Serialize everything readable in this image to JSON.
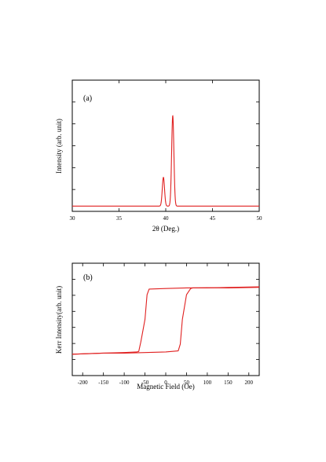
{
  "chart_data": [
    {
      "type": "line",
      "panel_label": "(a)",
      "xlabel": "2θ (Deg.)",
      "ylabel": "Intensity (arb. unit)",
      "xlim": [
        30,
        50
      ],
      "ylim": [
        0,
        1
      ],
      "x_ticks": [
        30,
        35,
        40,
        45,
        50
      ],
      "x_tick_labels": [
        "30",
        "35",
        "40",
        "45",
        "50"
      ],
      "y_tick_count": 5,
      "grid": false,
      "series": [
        {
          "color": "#e02020",
          "peaks": [
            {
              "center": 39.75,
              "height": 0.22,
              "width": 0.12
            },
            {
              "center": 40.75,
              "height": 0.69,
              "width": 0.12
            }
          ],
          "baseline": 0.04
        }
      ]
    },
    {
      "type": "line",
      "panel_label": "(b)",
      "xlabel": "Magnetic Field (Oe)",
      "ylabel": "Kerr Intensity(arb. unit)",
      "xlim": [
        -225,
        225
      ],
      "ylim": [
        0,
        1
      ],
      "x_ticks": [
        -200,
        -150,
        -100,
        -50,
        0,
        50,
        100,
        150,
        200
      ],
      "x_tick_labels": [
        "-200",
        "-150",
        "-100",
        "-50",
        "0",
        "50",
        "100",
        "150",
        "200"
      ],
      "y_tick_count": 6,
      "grid": false,
      "series": [
        {
          "color": "#e02020",
          "branch": "descending",
          "x": [
            225,
            150,
            100,
            50,
            0,
            -40,
            -45,
            -50,
            -60,
            -65,
            -70,
            -100,
            -150,
            -225
          ],
          "y": [
            0.785,
            0.78,
            0.782,
            0.78,
            0.775,
            0.77,
            0.72,
            0.5,
            0.3,
            0.215,
            0.21,
            0.205,
            0.2,
            0.19
          ]
        },
        {
          "color": "#e02020",
          "branch": "ascending",
          "x": [
            -225,
            -150,
            -100,
            -50,
            0,
            30,
            35,
            40,
            50,
            60,
            65,
            100,
            150,
            225
          ],
          "y": [
            0.19,
            0.2,
            0.2,
            0.205,
            0.21,
            0.22,
            0.28,
            0.5,
            0.72,
            0.775,
            0.78,
            0.78,
            0.785,
            0.79
          ]
        }
      ]
    }
  ]
}
